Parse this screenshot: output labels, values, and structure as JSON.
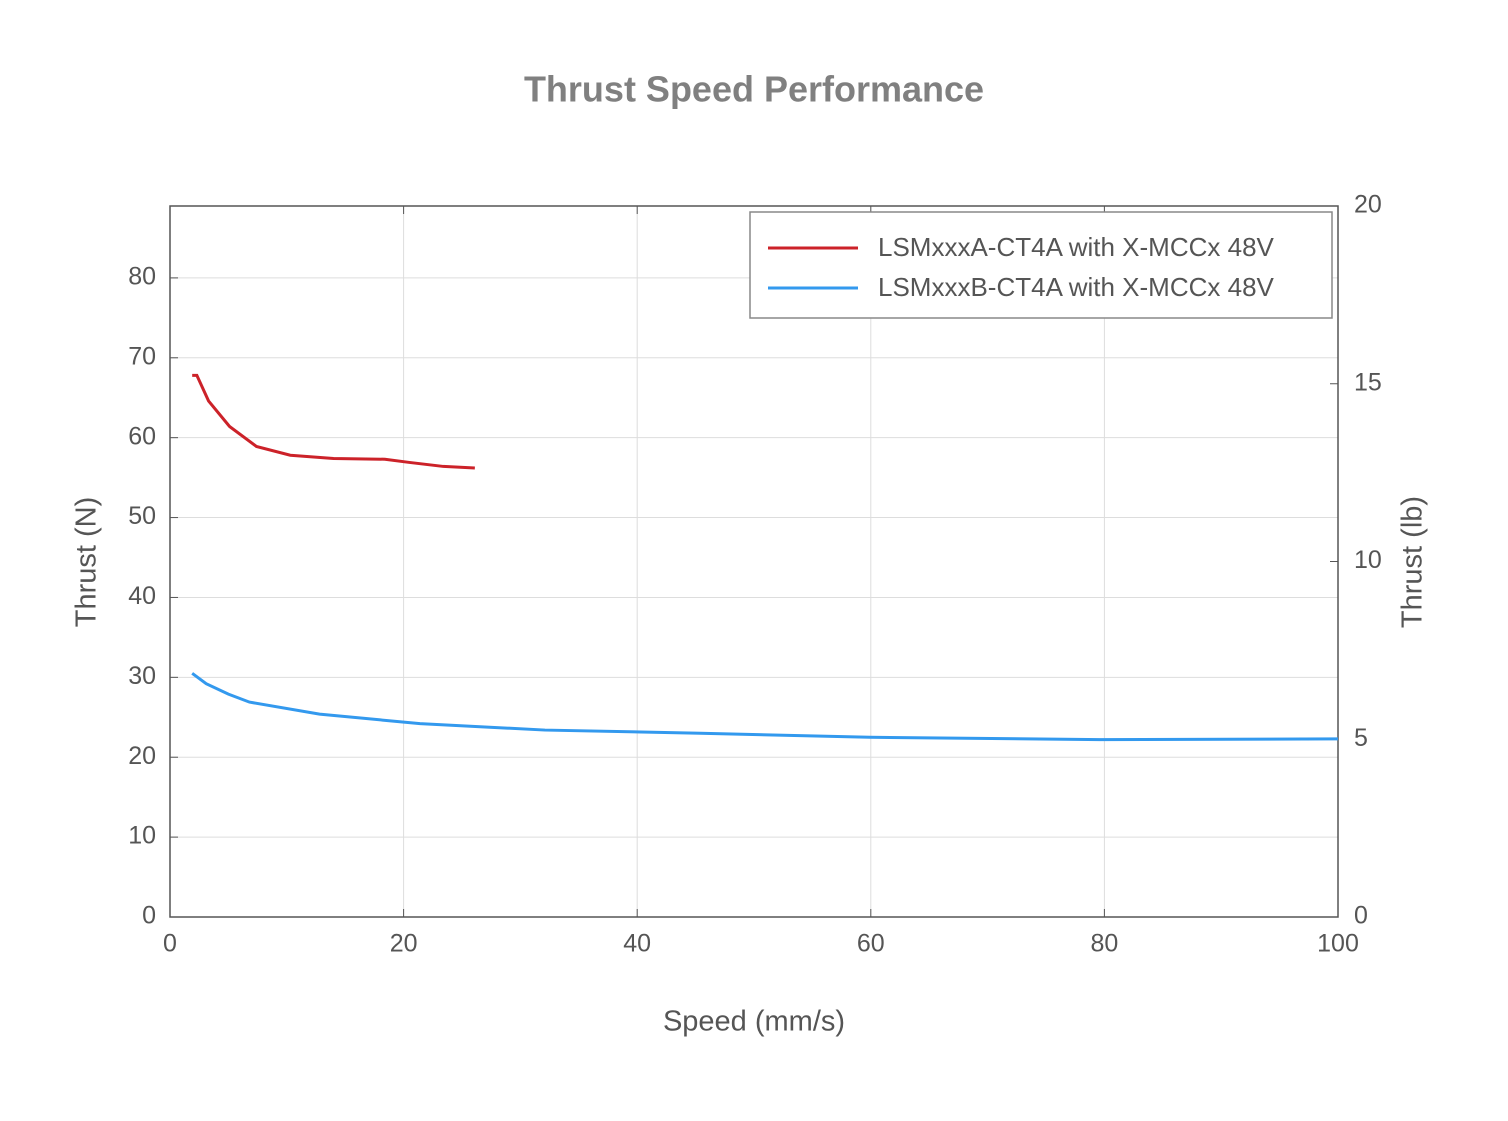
{
  "chart_data": {
    "type": "line",
    "title": "Thrust Speed Performance",
    "xlabel": "Speed (mm/s)",
    "ylabel": "Thrust (N)",
    "y2label": "Thrust (lb)",
    "xlim": [
      0,
      100
    ],
    "xticks": [
      0,
      20,
      40,
      60,
      80,
      100
    ],
    "ylim": [
      0,
      89
    ],
    "yticks": [
      0,
      10,
      20,
      30,
      40,
      50,
      60,
      70,
      80
    ],
    "y2lim": [
      0,
      20
    ],
    "y2ticks": [
      0,
      5,
      10,
      15,
      20
    ],
    "grid": true,
    "legend": "upper right",
    "series": [
      {
        "name": "LSMxxxA-CT4A with X-MCCx 48V",
        "color": "#cc2229",
        "x": [
          1.9,
          2.3,
          3.3,
          5.1,
          7.4,
          10.3,
          14.0,
          18.4,
          20.5,
          23.4,
          26.1
        ],
        "values": [
          67.8,
          67.8,
          64.6,
          61.4,
          58.9,
          57.8,
          57.4,
          57.3,
          56.9,
          56.4,
          56.2
        ]
      },
      {
        "name": "LSMxxxB-CT4A with X-MCCx 48V",
        "color": "#3399ee",
        "x": [
          1.9,
          3.1,
          5.0,
          6.8,
          12.8,
          21.4,
          32.1,
          45.4,
          59.9,
          79.6,
          100
        ],
        "values": [
          30.5,
          29.2,
          27.9,
          26.9,
          25.4,
          24.2,
          23.4,
          23.0,
          22.5,
          22.2,
          22.3
        ]
      }
    ]
  }
}
